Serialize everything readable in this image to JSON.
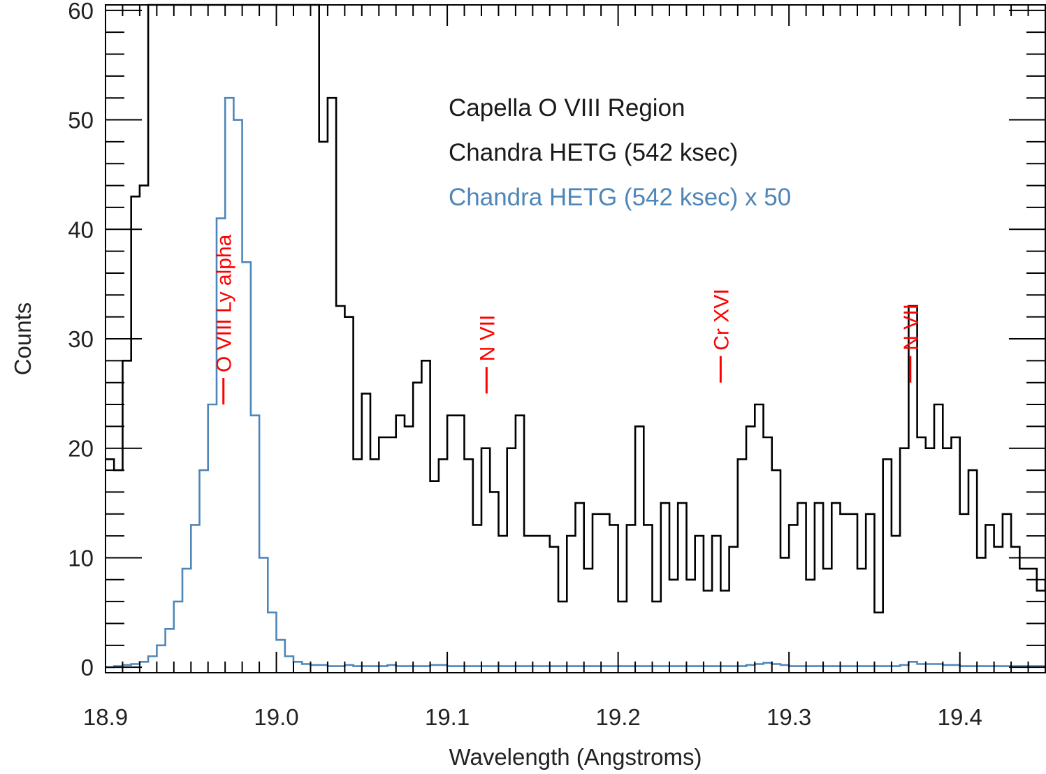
{
  "chart_data": {
    "type": "line",
    "step": true,
    "xlabel": "Wavelength (Angstroms)",
    "ylabel": "Counts",
    "xlim": [
      18.9,
      19.45
    ],
    "ylim": [
      -0.5,
      60.5
    ],
    "xticks": [
      18.9,
      19.0,
      19.1,
      19.2,
      19.3,
      19.4
    ],
    "xtick_labels": [
      "18.9",
      "19.0",
      "19.1",
      "19.2",
      "19.3",
      "19.4"
    ],
    "yticks": [
      0,
      10,
      20,
      30,
      40,
      50,
      60
    ],
    "ytick_labels": [
      "0",
      "10",
      "20",
      "30",
      "40",
      "50",
      "60"
    ],
    "grid": false,
    "legend_position": "top-right",
    "legend": [
      {
        "text": "Capella O VIII Region",
        "color": "#1a1a1a"
      },
      {
        "text": "Chandra HETG (542 ksec)",
        "color": "#1a1a1a"
      },
      {
        "text": "Chandra HETG (542 ksec) x 50",
        "color": "#4f86b8"
      }
    ],
    "bin_start": 18.9,
    "bin_width": 0.005,
    "series": [
      {
        "color": "#000000",
        "values": [
          19,
          18,
          28,
          43,
          44,
          60.5,
          60.5,
          60.5,
          60.5,
          60.5,
          60.5,
          60.5,
          60.5,
          60.5,
          60.5,
          60.5,
          60.5,
          60.5,
          60.5,
          60.5,
          60.5,
          60.5,
          60.5,
          60.5,
          60.5,
          48,
          52,
          33,
          32,
          19,
          25,
          19,
          21,
          21,
          23,
          22,
          26,
          28,
          17,
          19,
          23,
          23,
          19,
          13,
          20,
          16,
          12,
          20,
          23,
          12,
          12,
          12,
          11,
          6,
          12,
          15,
          9,
          14,
          14,
          13,
          6,
          13,
          22,
          13,
          6,
          15,
          8,
          15,
          8,
          12,
          7,
          12,
          7,
          11,
          19,
          22,
          24,
          21,
          18,
          10,
          13,
          15,
          8,
          15,
          9,
          15,
          14,
          14,
          9,
          14,
          5,
          19,
          12,
          20,
          33,
          21,
          20,
          24,
          20,
          21,
          14,
          18,
          10,
          13,
          11,
          14,
          11,
          9,
          9,
          7,
          8
        ]
      },
      {
        "color": "#4f86b8",
        "values": [
          0,
          0.1,
          0.2,
          0.3,
          0.5,
          1,
          2,
          3.5,
          6,
          9,
          13,
          18,
          24,
          41,
          52,
          50,
          37,
          23,
          10,
          5,
          2.5,
          1,
          0.5,
          0.3,
          0.2,
          0.2,
          0.1,
          0.1,
          0.2,
          0.1,
          0.1,
          0.1,
          0.1,
          0.2,
          0.1,
          0.1,
          0.1,
          0.1,
          0.2,
          0.2,
          0.1,
          0.1,
          0.1,
          0.1,
          0.1,
          0.1,
          0.1,
          0.1,
          0.1,
          0.1,
          0.1,
          0.1,
          0.1,
          0.1,
          0.1,
          0.1,
          0.1,
          0.1,
          0.1,
          0.1,
          0.1,
          0.1,
          0.1,
          0.1,
          0.1,
          0.1,
          0.1,
          0.1,
          0.1,
          0.1,
          0.1,
          0.1,
          0.1,
          0.1,
          0.1,
          0.2,
          0.3,
          0.4,
          0.3,
          0.2,
          0.1,
          0.1,
          0.1,
          0.1,
          0.1,
          0.1,
          0.1,
          0.1,
          0.1,
          0.1,
          0.1,
          0.1,
          0.1,
          0.2,
          0.5,
          0.3,
          0.3,
          0.3,
          0.2,
          0.2,
          0.1,
          0.1,
          0.1,
          0.1,
          0.1,
          0.1,
          0.1,
          0.1,
          0.1,
          0.1,
          0.1
        ]
      }
    ],
    "annotations": [
      {
        "text": "O VIII Ly alpha",
        "x": 18.969,
        "y": 24,
        "color": "#ff0000"
      },
      {
        "text": "N VII",
        "x": 19.123,
        "y": 25,
        "color": "#ff0000"
      },
      {
        "text": "Cr XVI",
        "x": 19.26,
        "y": 26,
        "color": "#ff0000"
      },
      {
        "text": "N VII",
        "x": 19.371,
        "y": 26,
        "color": "#ff0000"
      }
    ]
  }
}
